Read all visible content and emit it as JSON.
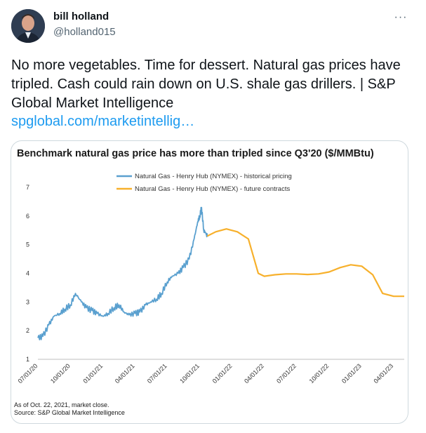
{
  "author": {
    "name": "bill holland",
    "handle": "@holland015"
  },
  "tweet": {
    "text": "No more vegetables. Time for dessert. Natural gas prices have tripled. Cash could rain down on U.S. shale gas drillers. | S&P Global Market Intelligence",
    "link": "spglobal.com/marketintellig…"
  },
  "icons": {
    "more": "more-options-icon",
    "avatar": "avatar-photo"
  },
  "colors": {
    "historical": "#5aa0cf",
    "futures": "#f7b02b",
    "link": "#1d9bf0"
  },
  "chart_data": {
    "type": "line",
    "title": "Benchmark natural gas price has more than tripled since Q3'20 ($/MMBtu)",
    "ylim": [
      1,
      7
    ],
    "yticks": [
      "1",
      "2",
      "3",
      "4",
      "5",
      "6",
      "7"
    ],
    "xticks": [
      "07/01/20",
      "10/01/20",
      "01/01/21",
      "04/01/21",
      "07/01/21",
      "10/01/21",
      "01/01/22",
      "04/01/22",
      "07/01/22",
      "10/01/22",
      "01/01/23",
      "04/01/23"
    ],
    "legend_position": "top",
    "grid": false,
    "series": [
      {
        "name": "Natural Gas - Henry Hub (NYMEX) - historical pricing",
        "color": "#5aa0cf",
        "x": [
          "2020-07-01",
          "2020-07-15",
          "2020-08-01",
          "2020-08-15",
          "2020-09-01",
          "2020-09-15",
          "2020-10-01",
          "2020-10-15",
          "2020-11-01",
          "2020-11-15",
          "2020-12-01",
          "2020-12-15",
          "2021-01-01",
          "2021-01-15",
          "2021-02-01",
          "2021-02-15",
          "2021-03-01",
          "2021-03-15",
          "2021-04-01",
          "2021-04-15",
          "2021-05-01",
          "2021-05-15",
          "2021-06-01",
          "2021-06-15",
          "2021-07-01",
          "2021-07-15",
          "2021-08-01",
          "2021-08-15",
          "2021-09-01",
          "2021-09-15",
          "2021-09-25",
          "2021-10-01",
          "2021-10-06",
          "2021-10-12",
          "2021-10-18",
          "2021-10-22"
        ],
        "y": [
          1.75,
          1.8,
          2.2,
          2.5,
          2.6,
          2.75,
          2.9,
          3.3,
          3.0,
          2.8,
          2.7,
          2.6,
          2.5,
          2.6,
          2.8,
          2.9,
          2.65,
          2.55,
          2.6,
          2.65,
          2.9,
          3.0,
          3.1,
          3.3,
          3.7,
          3.9,
          4.0,
          4.2,
          4.5,
          5.2,
          5.8,
          6.0,
          6.3,
          5.5,
          5.4,
          5.3
        ]
      },
      {
        "name": "Natural Gas - Henry Hub (NYMEX) - future contracts",
        "color": "#f7b02b",
        "x": [
          "2021-10-22",
          "2021-11-15",
          "2021-12-15",
          "2022-01-15",
          "2022-02-15",
          "2022-03-15",
          "2022-04-01",
          "2022-05-01",
          "2022-06-01",
          "2022-07-01",
          "2022-08-01",
          "2022-09-01",
          "2022-10-01",
          "2022-11-01",
          "2022-12-01",
          "2023-01-01",
          "2023-02-01",
          "2023-03-01",
          "2023-04-01",
          "2023-05-01"
        ],
        "y": [
          5.3,
          5.45,
          5.55,
          5.45,
          5.2,
          4.0,
          3.9,
          3.95,
          3.98,
          3.98,
          3.96,
          3.98,
          4.05,
          4.2,
          4.3,
          4.25,
          3.95,
          3.3,
          3.2,
          3.2
        ]
      }
    ]
  },
  "footnotes": {
    "line1": "As of Oct. 22, 2021, market close.",
    "line2": "Source: S&P Global Market Intelligence"
  }
}
